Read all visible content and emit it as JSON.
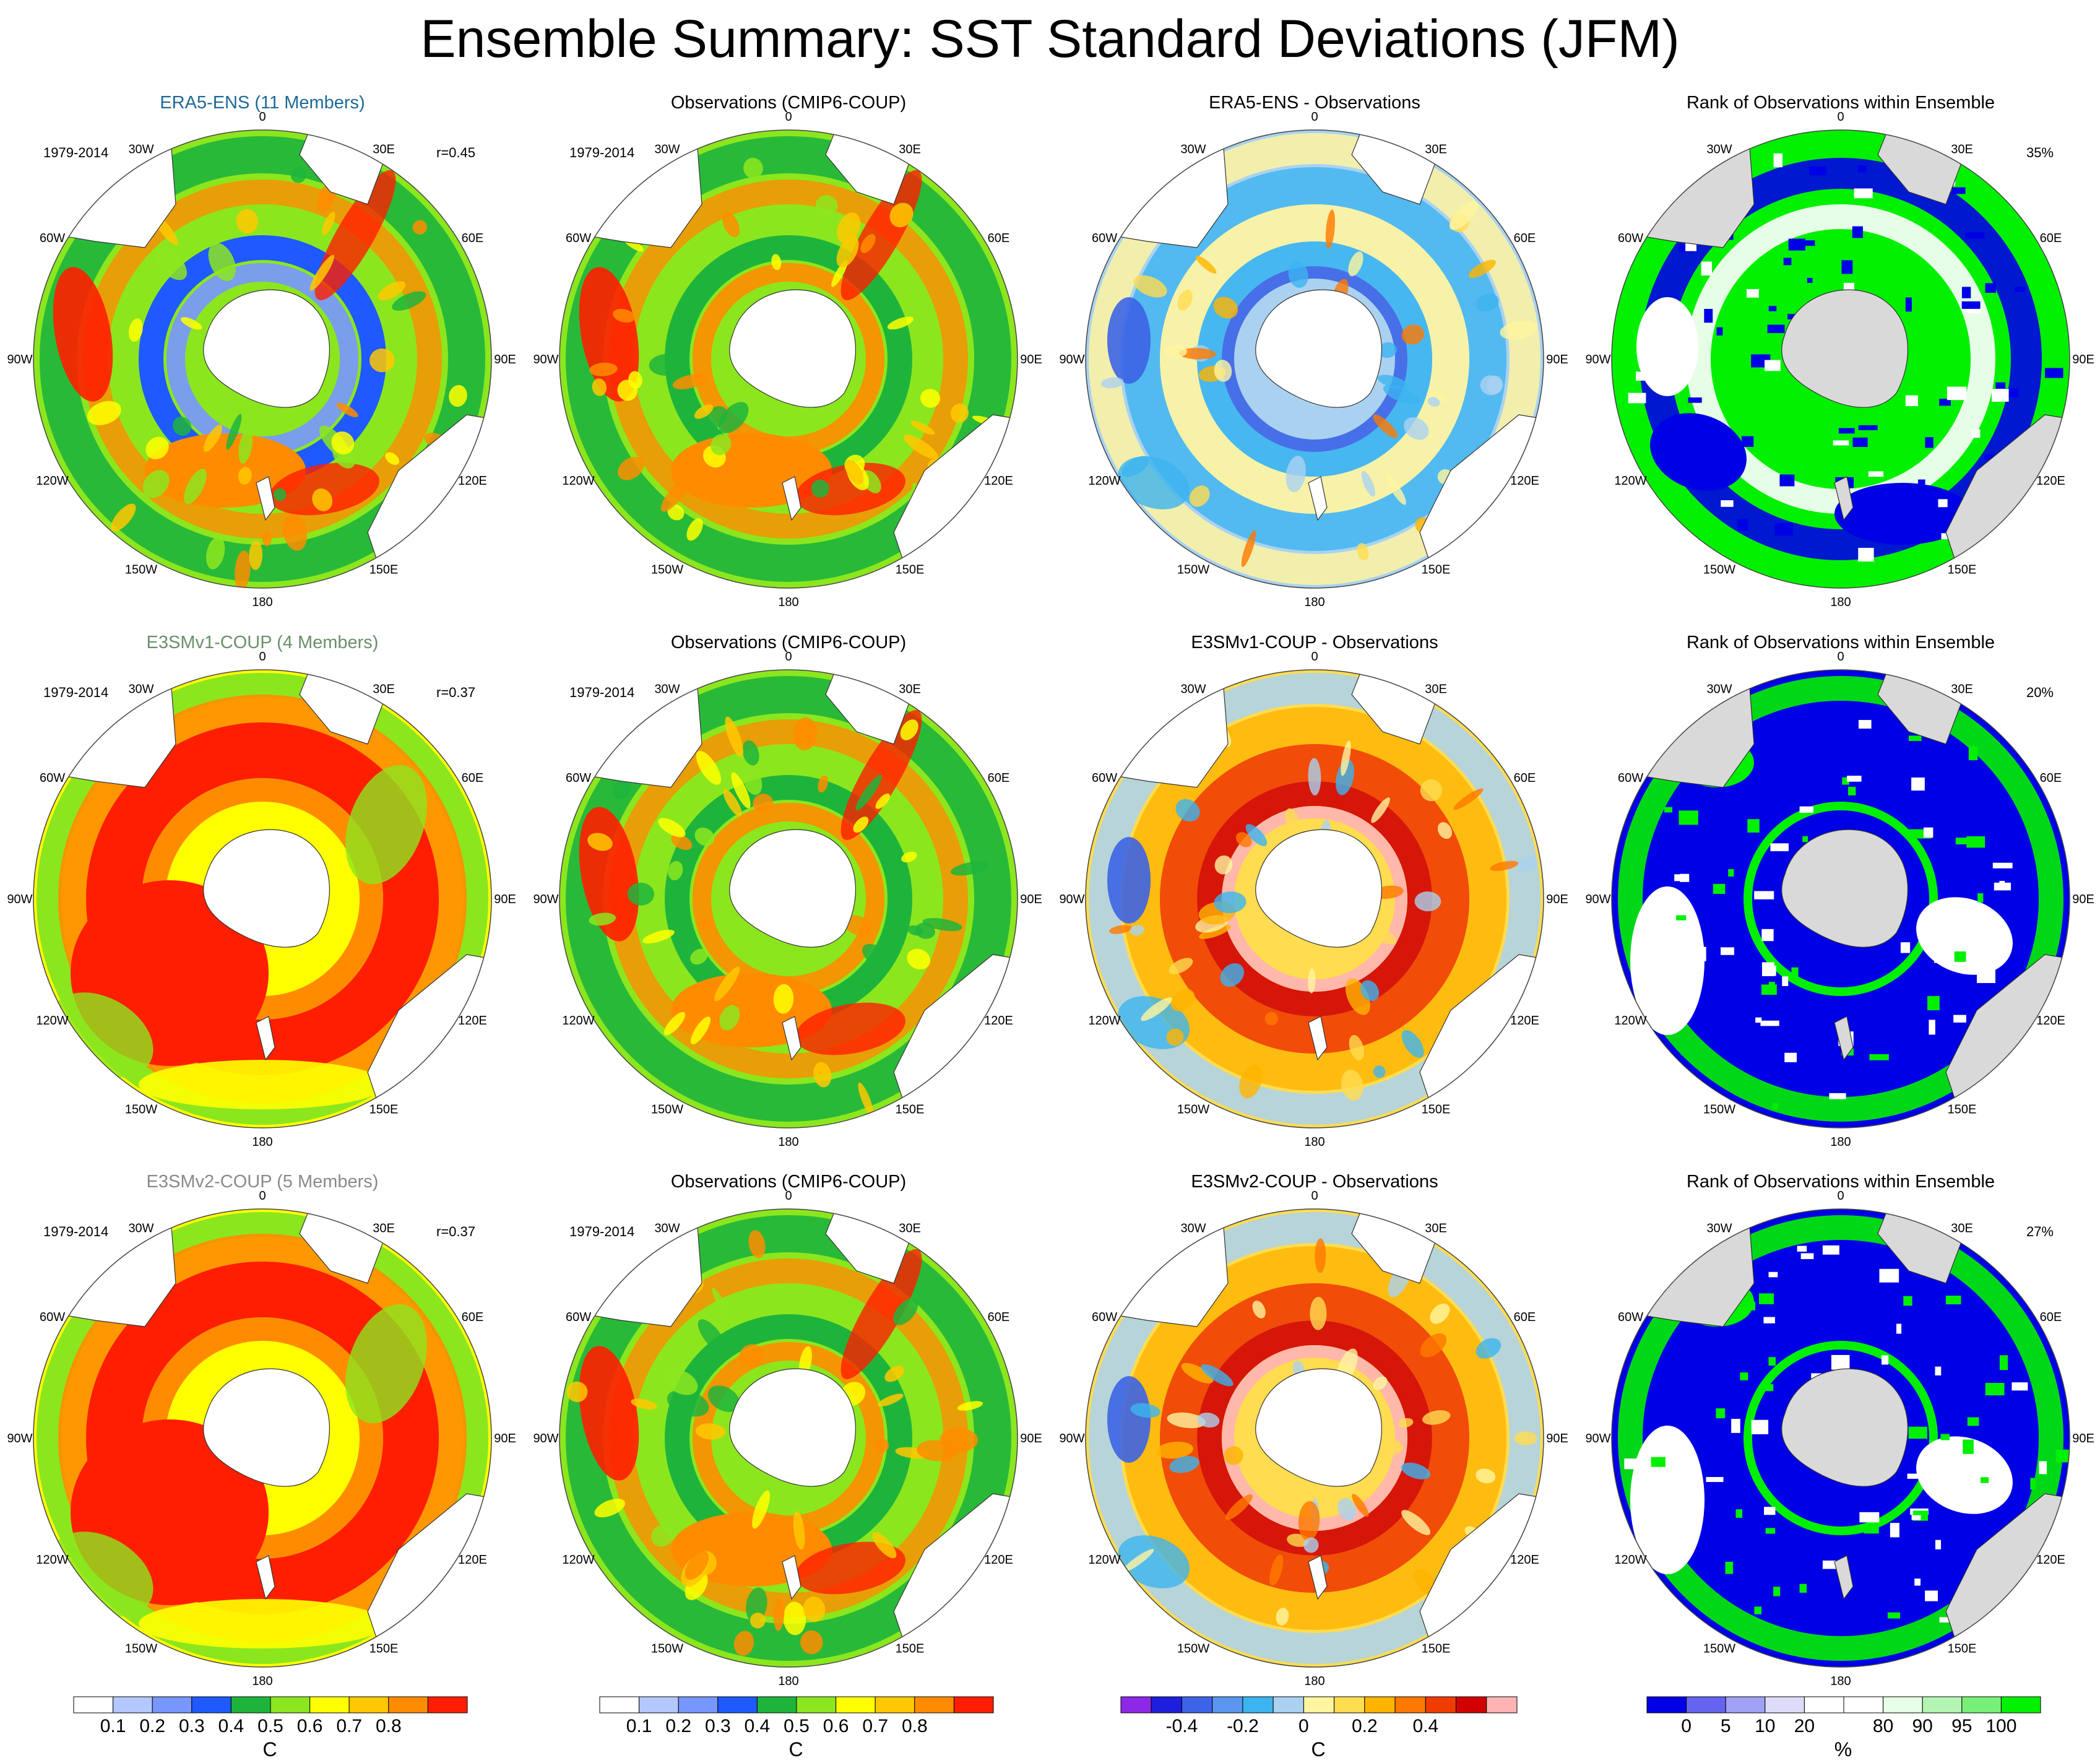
{
  "title": "Ensemble Summary: SST Standard Deviations (JFM)",
  "lon_labels": [
    "0",
    "30E",
    "60E",
    "90E",
    "120E",
    "150E",
    "180",
    "150W",
    "120W",
    "90W",
    "60W",
    "30W"
  ],
  "colors": {
    "ensemble_title_row1": "#1e6a96",
    "ensemble_title_row2": "#6b8f6b",
    "ensemble_title_row3": "#8a8a8a",
    "land": "#ffffff",
    "rank_land": "#d9d9d9"
  },
  "panels": [
    {
      "title": "ERA5-ENS (11 Members)",
      "left": "1979-2014",
      "right": "r=0.45",
      "kind": "sd",
      "style": "ens1"
    },
    {
      "title": "Observations (CMIP6-COUP)",
      "left": "1979-2014",
      "right": "",
      "kind": "sd",
      "style": "obs"
    },
    {
      "title": "ERA5-ENS - Observations",
      "left": "",
      "right": "",
      "kind": "diff",
      "style": "diff1"
    },
    {
      "title": "Rank of Observations within Ensemble",
      "left": "",
      "right": "35%",
      "kind": "rank",
      "style": "rank1"
    },
    {
      "title": "E3SMv1-COUP (4 Members)",
      "left": "1979-2014",
      "right": "r=0.37",
      "kind": "sd",
      "style": "ens2"
    },
    {
      "title": "Observations (CMIP6-COUP)",
      "left": "1979-2014",
      "right": "",
      "kind": "sd",
      "style": "obs"
    },
    {
      "title": "E3SMv1-COUP - Observations",
      "left": "",
      "right": "",
      "kind": "diff",
      "style": "diff2"
    },
    {
      "title": "Rank of Observations within Ensemble",
      "left": "",
      "right": "20%",
      "kind": "rank",
      "style": "rank2"
    },
    {
      "title": "E3SMv2-COUP (5 Members)",
      "left": "1979-2014",
      "right": "r=0.37",
      "kind": "sd",
      "style": "ens3"
    },
    {
      "title": "Observations (CMIP6-COUP)",
      "left": "1979-2014",
      "right": "",
      "kind": "sd",
      "style": "obs"
    },
    {
      "title": "E3SMv2-COUP - Observations",
      "left": "",
      "right": "",
      "kind": "diff",
      "style": "diff3"
    },
    {
      "title": "Rank of Observations within Ensemble",
      "left": "",
      "right": "27%",
      "kind": "rank",
      "style": "rank3"
    }
  ],
  "colorbars": [
    {
      "name": "sd",
      "unit": "C",
      "colors": [
        "#ffffff",
        "#b4c8ff",
        "#7896ff",
        "#1e5aff",
        "#1eb43c",
        "#8ce61e",
        "#ffff00",
        "#ffc800",
        "#ff8c00",
        "#ff1e00"
      ],
      "labels": [
        "0.1",
        "0.2",
        "0.3",
        "0.4",
        "0.5",
        "0.6",
        "0.7",
        "0.8"
      ]
    },
    {
      "name": "sd-obs",
      "unit": "C",
      "colors": [
        "#ffffff",
        "#b4c8ff",
        "#7896ff",
        "#1e5aff",
        "#1eb43c",
        "#8ce61e",
        "#ffff00",
        "#ffc800",
        "#ff8c00",
        "#ff1e00"
      ],
      "labels": [
        "0.1",
        "0.2",
        "0.3",
        "0.4",
        "0.5",
        "0.6",
        "0.7",
        "0.8"
      ]
    },
    {
      "name": "diff",
      "unit": "C",
      "colors": [
        "#8c28e6",
        "#1e1edc",
        "#3c64e6",
        "#5a96f0",
        "#3cb4f0",
        "#aad2f0",
        "#fff5a0",
        "#ffdc50",
        "#ffb400",
        "#ff7800",
        "#f03c00",
        "#d20000",
        "#ffb4b4"
      ],
      "labels": [
        "-0.4",
        "-0.2",
        "0",
        "0.2",
        "0.4"
      ]
    },
    {
      "name": "rank",
      "unit": "%",
      "colors": [
        "#0000e6",
        "#6464f0",
        "#a0a0f5",
        "#dcdcfa",
        "#ffffff",
        "#ffffff",
        "#e6ffe6",
        "#b4f5b4",
        "#78f078",
        "#00f000"
      ],
      "labels": [
        "0",
        "5",
        "10",
        "20",
        "80",
        "90",
        "95",
        "100"
      ]
    }
  ]
}
